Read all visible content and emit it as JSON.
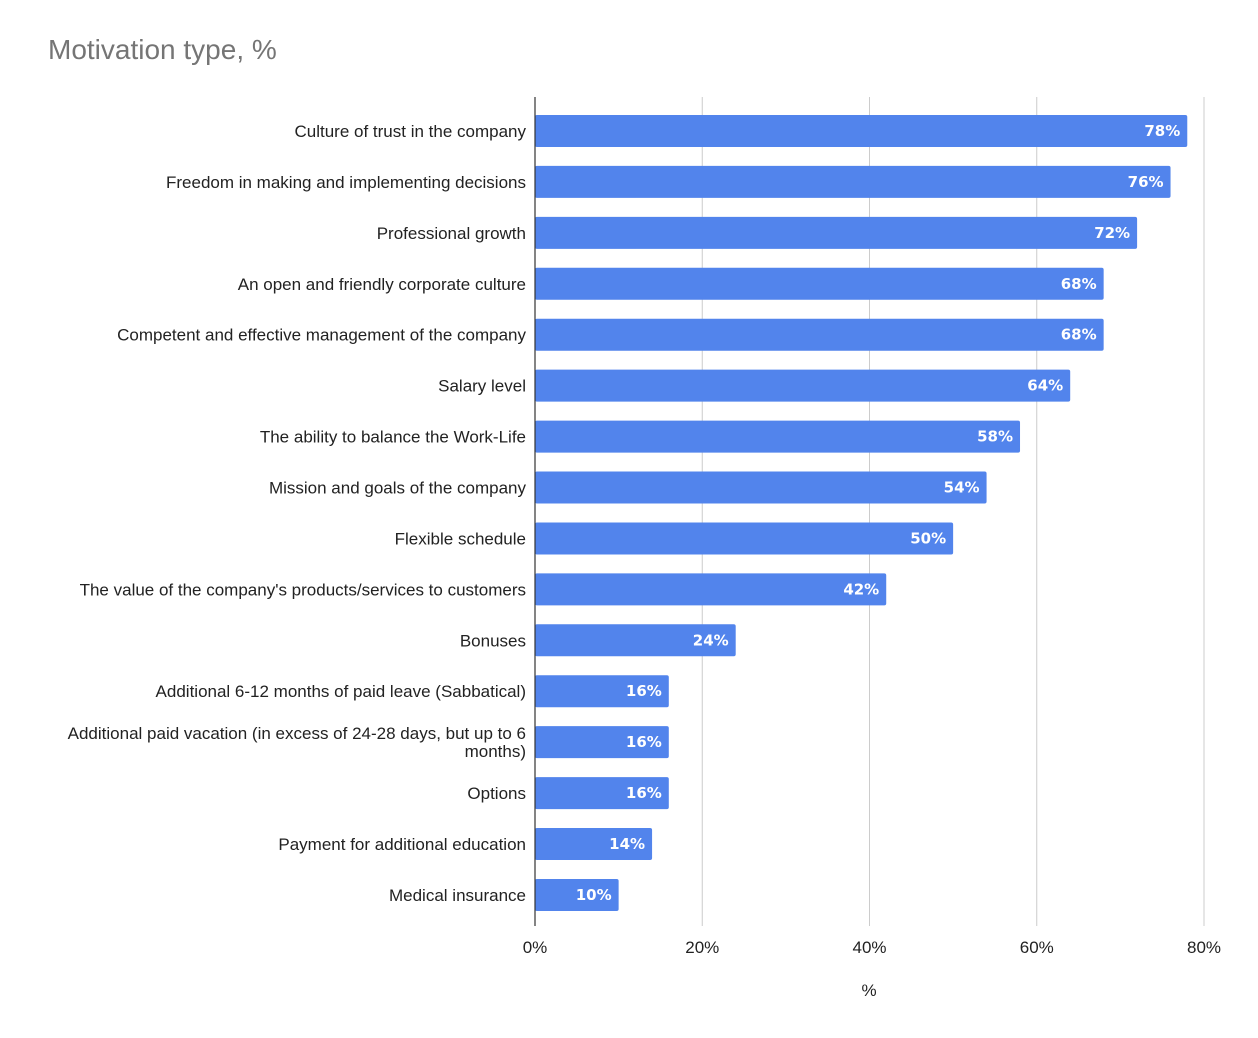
{
  "chart_data": {
    "type": "bar",
    "orientation": "horizontal",
    "title": "Motivation type, %",
    "xlabel": "%",
    "ylabel": "",
    "xlim": [
      0,
      80
    ],
    "x_ticks": [
      0,
      20,
      40,
      60,
      80
    ],
    "x_tick_labels": [
      "0%",
      "20%",
      "40%",
      "60%",
      "80%"
    ],
    "grid": true,
    "legend": "none",
    "bar_color": "#5284EC",
    "categories": [
      "Culture of trust in the company",
      "Freedom in making and implementing decisions",
      "Professional growth",
      "An open and friendly corporate culture",
      "Competent and effective management of the company",
      "Salary level",
      "The ability to balance the Work-Life",
      "Mission and goals of the company",
      "Flexible schedule",
      "The value of the company's products/services to customers",
      "Bonuses",
      "Additional 6-12 months of paid leave (Sabbatical)",
      "Additional paid vacation (in excess of 24-28 days, but up to 6 months)",
      "Options",
      "Payment for additional education",
      "Medical insurance"
    ],
    "category_lines": [
      [
        "Culture of trust in the company"
      ],
      [
        "Freedom in making and implementing decisions"
      ],
      [
        "Professional growth"
      ],
      [
        "An open and friendly corporate culture"
      ],
      [
        "Competent and effective management of the company"
      ],
      [
        "Salary level"
      ],
      [
        "The ability to balance the Work-Life"
      ],
      [
        "Mission and goals of the company"
      ],
      [
        "Flexible schedule"
      ],
      [
        "The value of the company's products/services to customers"
      ],
      [
        "Bonuses"
      ],
      [
        "Additional 6-12 months of paid leave (Sabbatical)"
      ],
      [
        "Additional paid vacation (in excess of 24-28 days, but up to 6",
        "months)"
      ],
      [
        "Options"
      ],
      [
        "Payment for additional education"
      ],
      [
        "Medical insurance"
      ]
    ],
    "values": [
      78,
      76,
      72,
      68,
      68,
      64,
      58,
      54,
      50,
      42,
      24,
      16,
      16,
      16,
      14,
      10
    ],
    "data_labels": [
      "78%",
      "76%",
      "72%",
      "68%",
      "68%",
      "64%",
      "58%",
      "54%",
      "50%",
      "42%",
      "24%",
      "16%",
      "16%",
      "16%",
      "14%",
      "10%"
    ]
  }
}
